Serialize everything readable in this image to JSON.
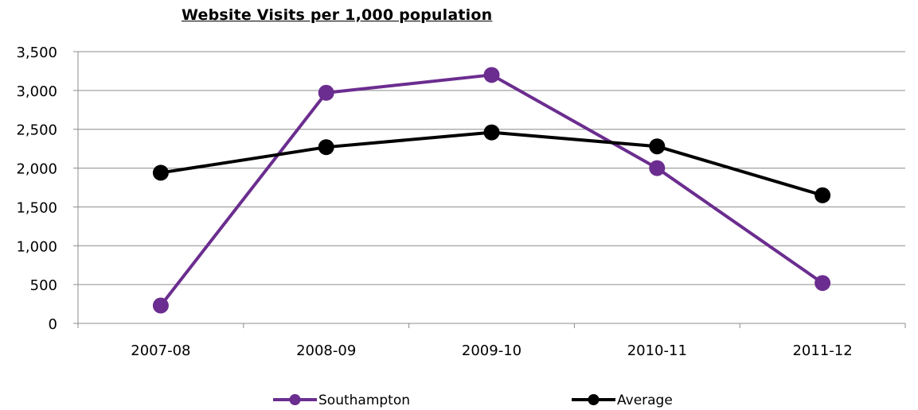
{
  "chart_data": {
    "type": "line",
    "title": "Website Visits per 1,000 population",
    "xlabel": "",
    "ylabel": "",
    "categories": [
      "2007-08",
      "2008-09",
      "2009-10",
      "2010-11",
      "2011-12"
    ],
    "y_ticks": [
      "0",
      "500",
      "1,000",
      "1,500",
      "2,000",
      "2,500",
      "3,000",
      "3,500"
    ],
    "ylim": [
      0,
      3500
    ],
    "grid": true,
    "legend_position": "bottom",
    "series": [
      {
        "name": "Southampton",
        "color": "#6b2d8f",
        "values": [
          230,
          2970,
          3200,
          2000,
          520
        ]
      },
      {
        "name": "Average",
        "color": "#000000",
        "values": [
          1940,
          2270,
          2460,
          2280,
          1650
        ]
      }
    ]
  }
}
